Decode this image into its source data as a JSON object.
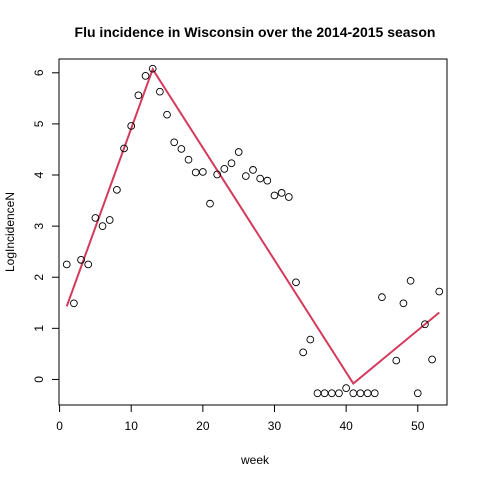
{
  "chart_data": {
    "type": "scatter",
    "title": "Flu incidence in Wisconsin over the 2014-2015 season",
    "xlabel": "week",
    "ylabel": "LogIncidenceN",
    "xlim": [
      -0.08,
      54.08
    ],
    "ylim": [
      -0.5,
      6.27
    ],
    "x_ticks": [
      0,
      10,
      20,
      30,
      40,
      50
    ],
    "y_ticks": [
      0,
      1,
      2,
      3,
      4,
      5,
      6
    ],
    "grid": false,
    "legend": "none",
    "point_color": "#000000",
    "line_color": "#d43a5c",
    "points": {
      "x": [
        1,
        2,
        3,
        4,
        5,
        6,
        7,
        8,
        9,
        10,
        11,
        12,
        13,
        14,
        15,
        16,
        17,
        18,
        19,
        20,
        21,
        22,
        23,
        24,
        25,
        26,
        27,
        28,
        29,
        30,
        31,
        32,
        33,
        34,
        35,
        36,
        37,
        38,
        39,
        40,
        41,
        42,
        43,
        44,
        45,
        47,
        48,
        49,
        50,
        51,
        52,
        53
      ],
      "y": [
        2.25,
        1.49,
        2.34,
        2.25,
        3.16,
        3.0,
        3.12,
        3.71,
        4.52,
        4.96,
        5.56,
        5.94,
        6.08,
        5.63,
        5.18,
        4.64,
        4.51,
        4.3,
        4.05,
        4.06,
        3.44,
        4.01,
        4.12,
        4.23,
        4.45,
        3.98,
        4.1,
        3.93,
        3.89,
        3.6,
        3.65,
        3.57,
        1.9,
        0.53,
        0.78,
        -0.27,
        -0.27,
        -0.27,
        -0.27,
        -0.17,
        -0.27,
        -0.27,
        -0.27,
        -0.27,
        1.61,
        0.37,
        1.49,
        1.93,
        -0.27,
        1.08,
        0.39,
        1.72
      ]
    },
    "fit_line": {
      "x": [
        1,
        13,
        41,
        53
      ],
      "y": [
        1.43,
        6.07,
        -0.08,
        1.31
      ]
    }
  }
}
